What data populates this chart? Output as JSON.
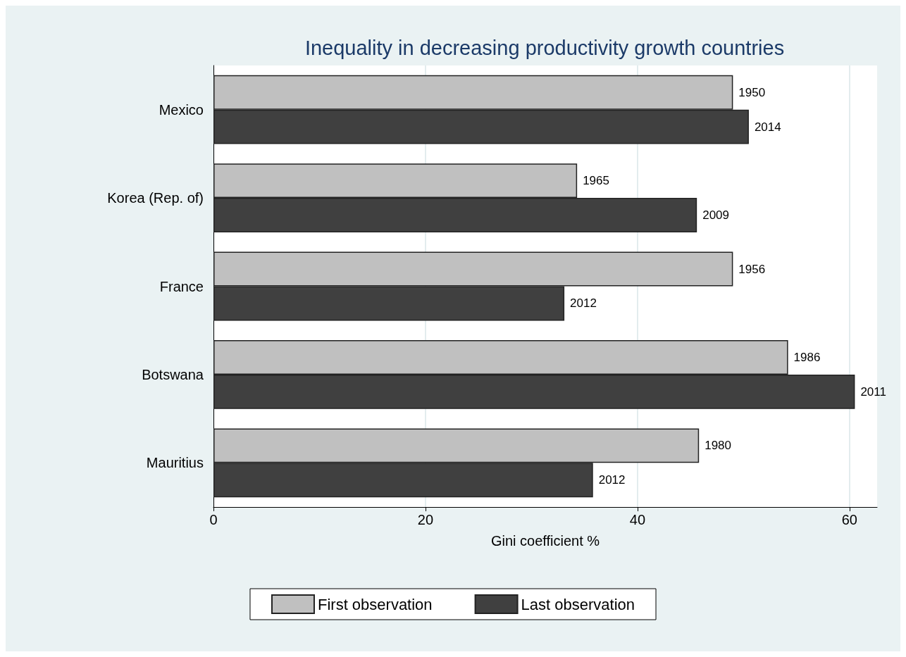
{
  "chart_data": {
    "type": "bar",
    "orientation": "horizontal",
    "title": "Inequality in decreasing productivity growth countries",
    "xlabel": "Gini coefficient %",
    "categories": [
      "Mexico",
      "Korea (Rep. of)",
      "France",
      "Botswana",
      "Mauritius"
    ],
    "series": [
      {
        "name": "First observation",
        "color": "#c0c0c0",
        "values": [
          49.0,
          34.3,
          49.0,
          54.2,
          45.8
        ]
      },
      {
        "name": "Last observation",
        "color": "#404040",
        "values": [
          50.5,
          45.6,
          33.1,
          60.5,
          35.8
        ]
      }
    ],
    "annotations": [
      {
        "text": "1950",
        "x": 49.0,
        "y": "Mexico"
      },
      {
        "text": "2014",
        "x": 50.5,
        "y": "Mexico"
      },
      {
        "text": "1965",
        "x": 34.3,
        "y": "Korea (Rep. of)"
      },
      {
        "text": "2009",
        "x": 45.6,
        "y": "Korea (Rep. of)"
      },
      {
        "text": "1956",
        "x": 49.0,
        "y": "France"
      },
      {
        "text": "2012",
        "x": 33.1,
        "y": "France"
      },
      {
        "text": "1986",
        "x": 54.2,
        "y": "Botswana"
      },
      {
        "text": "2011",
        "x": 60.5,
        "y": "Botswana"
      },
      {
        "text": "1980",
        "x": 45.8,
        "y": "Mauritius"
      },
      {
        "text": "2012",
        "x": 35.8,
        "y": "Mauritius"
      }
    ],
    "xlim": [
      0,
      62.6
    ],
    "xticks": [
      0,
      20,
      40,
      60
    ],
    "grid": "x",
    "legend": "bottom"
  }
}
